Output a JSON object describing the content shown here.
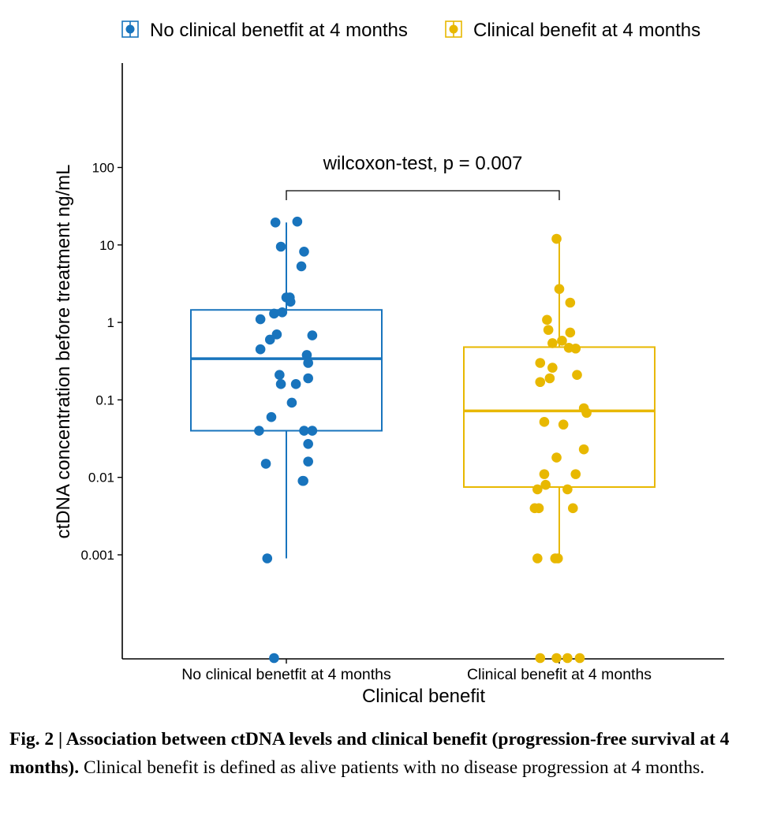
{
  "chart_data": {
    "type": "box",
    "title": "",
    "xlabel": "Clinical benefit",
    "ylabel": "ctDNA concentration before treatment ng/mL",
    "yscale": "log10",
    "ylim": [
      4e-05,
      2000
    ],
    "yticks": [
      {
        "value": 0.001,
        "label": "0.001"
      },
      {
        "value": 0.01,
        "label": "0.01"
      },
      {
        "value": 0.1,
        "label": "0.1"
      },
      {
        "value": 1,
        "label": "1"
      },
      {
        "value": 10,
        "label": "10"
      },
      {
        "value": 100,
        "label": "100"
      }
    ],
    "categories": [
      "No clinical benetfit at 4 months",
      "Clinical benefit at 4 months"
    ],
    "legend": {
      "position": "top",
      "entries": [
        "No clinical benetfit at 4 months",
        "Clinical benefit at 4 months"
      ]
    },
    "annotation": {
      "text": "wilcoxon-test, p = 0.007",
      "between": [
        0,
        1
      ]
    },
    "series": [
      {
        "name": "No clinical benetfit at 4 months",
        "color": "#1874bd",
        "box": {
          "whisker_low": 0.0009,
          "q1": 0.04,
          "median": 0.34,
          "q3": 1.45,
          "whisker_high": 19.5
        },
        "points": [
          {
            "jitter": -0.08,
            "value": 19.5
          },
          {
            "jitter": 0.08,
            "value": 20
          },
          {
            "jitter": -0.04,
            "value": 9.5
          },
          {
            "jitter": 0.13,
            "value": 8.2
          },
          {
            "jitter": 0.11,
            "value": 5.3
          },
          {
            "jitter": 0.0,
            "value": 2.1
          },
          {
            "jitter": 0.025,
            "value": 2.1
          },
          {
            "jitter": 0.03,
            "value": 1.85
          },
          {
            "jitter": -0.09,
            "value": 1.3
          },
          {
            "jitter": -0.03,
            "value": 1.35
          },
          {
            "jitter": -0.19,
            "value": 1.1
          },
          {
            "jitter": 0.19,
            "value": 0.68
          },
          {
            "jitter": -0.07,
            "value": 0.7
          },
          {
            "jitter": -0.12,
            "value": 0.6
          },
          {
            "jitter": -0.19,
            "value": 0.45
          },
          {
            "jitter": 0.15,
            "value": 0.38
          },
          {
            "jitter": 0.16,
            "value": 0.3
          },
          {
            "jitter": -0.05,
            "value": 0.21
          },
          {
            "jitter": 0.16,
            "value": 0.19
          },
          {
            "jitter": -0.04,
            "value": 0.16
          },
          {
            "jitter": 0.07,
            "value": 0.16
          },
          {
            "jitter": 0.04,
            "value": 0.092
          },
          {
            "jitter": -0.11,
            "value": 0.06
          },
          {
            "jitter": -0.2,
            "value": 0.04
          },
          {
            "jitter": 0.13,
            "value": 0.04
          },
          {
            "jitter": 0.19,
            "value": 0.04
          },
          {
            "jitter": 0.16,
            "value": 0.027
          },
          {
            "jitter": 0.16,
            "value": 0.016
          },
          {
            "jitter": -0.15,
            "value": 0.015
          },
          {
            "jitter": 0.12,
            "value": 0.009
          },
          {
            "jitter": 0.125,
            "value": 0.009
          },
          {
            "jitter": -0.14,
            "value": 0.0009
          },
          {
            "jitter": -0.09,
            "value": 0
          }
        ]
      },
      {
        "name": "Clinical benefit at 4 months",
        "color": "#e8b800",
        "box": {
          "whisker_low": 0.0009,
          "q1": 0.0075,
          "median": 0.072,
          "q3": 0.48,
          "whisker_high": 12
        },
        "points": [
          {
            "jitter": -0.02,
            "value": 12
          },
          {
            "jitter": 0.0,
            "value": 2.7
          },
          {
            "jitter": 0.08,
            "value": 1.8
          },
          {
            "jitter": -0.09,
            "value": 1.08
          },
          {
            "jitter": -0.08,
            "value": 0.8
          },
          {
            "jitter": 0.08,
            "value": 0.74
          },
          {
            "jitter": 0.02,
            "value": 0.58
          },
          {
            "jitter": -0.05,
            "value": 0.54
          },
          {
            "jitter": 0.07,
            "value": 0.47
          },
          {
            "jitter": 0.12,
            "value": 0.46
          },
          {
            "jitter": -0.14,
            "value": 0.3
          },
          {
            "jitter": -0.05,
            "value": 0.26
          },
          {
            "jitter": 0.13,
            "value": 0.21
          },
          {
            "jitter": -0.07,
            "value": 0.19
          },
          {
            "jitter": -0.14,
            "value": 0.17
          },
          {
            "jitter": 0.18,
            "value": 0.078
          },
          {
            "jitter": 0.2,
            "value": 0.068
          },
          {
            "jitter": -0.11,
            "value": 0.052
          },
          {
            "jitter": 0.03,
            "value": 0.048
          },
          {
            "jitter": 0.18,
            "value": 0.023
          },
          {
            "jitter": -0.02,
            "value": 0.018
          },
          {
            "jitter": -0.11,
            "value": 0.011
          },
          {
            "jitter": 0.12,
            "value": 0.011
          },
          {
            "jitter": -0.1,
            "value": 0.008
          },
          {
            "jitter": -0.16,
            "value": 0.007
          },
          {
            "jitter": 0.06,
            "value": 0.007
          },
          {
            "jitter": -0.18,
            "value": 0.004
          },
          {
            "jitter": -0.15,
            "value": 0.004
          },
          {
            "jitter": 0.1,
            "value": 0.004
          },
          {
            "jitter": -0.16,
            "value": 0.0009
          },
          {
            "jitter": -0.03,
            "value": 0.0009
          },
          {
            "jitter": -0.01,
            "value": 0.0009
          },
          {
            "jitter": -0.14,
            "value": 0
          },
          {
            "jitter": -0.02,
            "value": 0
          },
          {
            "jitter": 0.06,
            "value": 0
          },
          {
            "jitter": 0.15,
            "value": 0
          }
        ]
      }
    ]
  },
  "caption": {
    "bold": "Fig. 2 | Association between ctDNA levels and clinical benefit (progression-free survival at 4 months).",
    "text": " Clinical benefit is defined as alive patients with no disease progression at 4 months."
  }
}
